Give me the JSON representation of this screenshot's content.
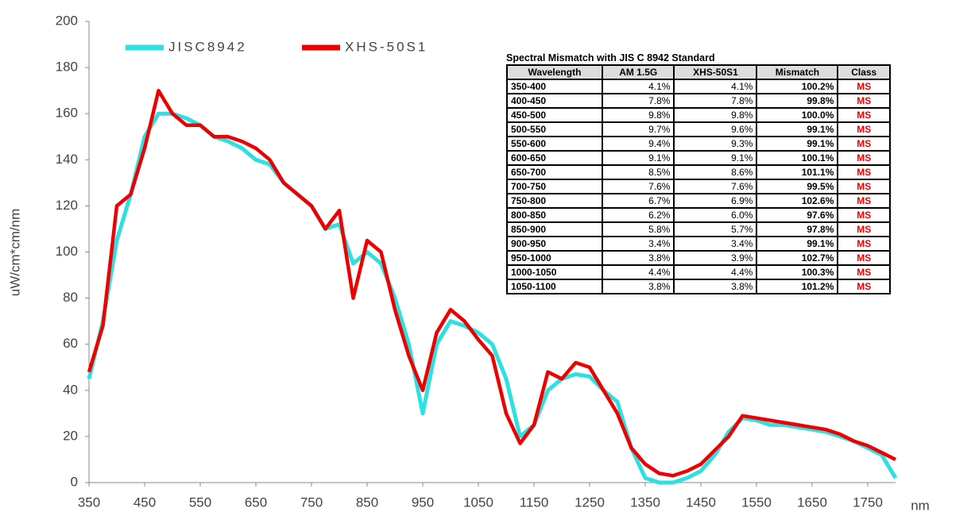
{
  "chart_data": {
    "type": "line",
    "y_label": "uW/cm*cm/nm",
    "x_label": "nm",
    "x": [
      350,
      375,
      400,
      425,
      450,
      475,
      500,
      525,
      550,
      575,
      600,
      625,
      650,
      675,
      700,
      725,
      750,
      775,
      800,
      825,
      850,
      875,
      900,
      925,
      950,
      975,
      1000,
      1025,
      1050,
      1075,
      1100,
      1125,
      1150,
      1175,
      1200,
      1225,
      1250,
      1275,
      1300,
      1325,
      1350,
      1375,
      1400,
      1425,
      1450,
      1475,
      1500,
      1525,
      1550,
      1575,
      1600,
      1625,
      1650,
      1675,
      1700,
      1725,
      1750,
      1775,
      1800
    ],
    "series": [
      {
        "name": "JISC8942",
        "color": "#2ee0e0",
        "values": [
          45,
          70,
          105,
          125,
          150,
          160,
          160,
          158,
          155,
          150,
          148,
          145,
          140,
          138,
          130,
          125,
          120,
          110,
          112,
          95,
          100,
          95,
          80,
          60,
          30,
          60,
          70,
          68,
          65,
          60,
          45,
          20,
          25,
          40,
          45,
          47,
          46,
          40,
          35,
          15,
          2,
          0,
          0,
          2,
          5,
          12,
          22,
          28,
          27,
          25,
          25,
          24,
          23,
          22,
          20,
          18,
          15,
          12,
          2
        ]
      },
      {
        "name": "XHS-50S1",
        "color": "#ee0000",
        "values": [
          48,
          68,
          120,
          125,
          145,
          170,
          160,
          155,
          155,
          150,
          150,
          148,
          145,
          140,
          130,
          125,
          120,
          110,
          118,
          80,
          105,
          100,
          75,
          55,
          40,
          65,
          75,
          70,
          62,
          55,
          30,
          17,
          25,
          48,
          45,
          52,
          50,
          40,
          30,
          15,
          8,
          4,
          3,
          5,
          8,
          14,
          20,
          29,
          28,
          27,
          26,
          25,
          24,
          23,
          21,
          18,
          16,
          13,
          10
        ]
      }
    ],
    "xlim": [
      350,
      1800
    ],
    "xticks": [
      350,
      450,
      550,
      650,
      750,
      850,
      950,
      1050,
      1150,
      1250,
      1350,
      1450,
      1550,
      1650,
      1750
    ],
    "ylim": [
      0,
      200
    ],
    "yticks": [
      0,
      20,
      40,
      60,
      80,
      100,
      120,
      140,
      160,
      180,
      200
    ],
    "grid": false,
    "legend": "top-left"
  },
  "table": {
    "title": "Spectral Mismatch with JIS C 8942 Standard",
    "columns": [
      "Wavelength",
      "AM 1.5G",
      "XHS-50S1",
      "Mismatch",
      "Class"
    ],
    "rows": [
      [
        "350-400",
        "4.1%",
        "4.1%",
        "100.2%",
        "MS"
      ],
      [
        "400-450",
        "7.8%",
        "7.8%",
        "99.8%",
        "MS"
      ],
      [
        "450-500",
        "9.8%",
        "9.8%",
        "100.0%",
        "MS"
      ],
      [
        "500-550",
        "9.7%",
        "9.6%",
        "99.1%",
        "MS"
      ],
      [
        "550-600",
        "9.4%",
        "9.3%",
        "99.1%",
        "MS"
      ],
      [
        "600-650",
        "9.1%",
        "9.1%",
        "100.1%",
        "MS"
      ],
      [
        "650-700",
        "8.5%",
        "8.6%",
        "101.1%",
        "MS"
      ],
      [
        "700-750",
        "7.6%",
        "7.6%",
        "99.5%",
        "MS"
      ],
      [
        "750-800",
        "6.7%",
        "6.9%",
        "102.6%",
        "MS"
      ],
      [
        "800-850",
        "6.2%",
        "6.0%",
        "97.6%",
        "MS"
      ],
      [
        "850-900",
        "5.8%",
        "5.7%",
        "97.8%",
        "MS"
      ],
      [
        "900-950",
        "3.4%",
        "3.4%",
        "99.1%",
        "MS"
      ],
      [
        "950-1000",
        "3.8%",
        "3.9%",
        "102.7%",
        "MS"
      ],
      [
        "1000-1050",
        "4.4%",
        "4.4%",
        "100.3%",
        "MS"
      ],
      [
        "1050-1100",
        "3.8%",
        "3.8%",
        "101.2%",
        "MS"
      ]
    ]
  }
}
